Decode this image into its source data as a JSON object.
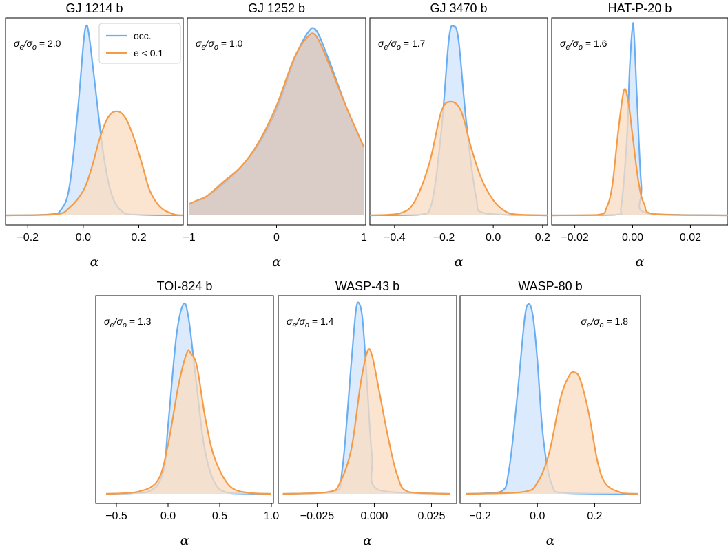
{
  "chart_data": [
    {
      "type": "area",
      "title": "GJ 1214 b",
      "xlabel": "α",
      "annotation": "σe/σo = 2.0",
      "annotation_pos": "top-left",
      "legend": [
        "occ.",
        "e < 0.1"
      ],
      "legend_pos": "top-right",
      "xlim": [
        -0.28,
        0.36
      ],
      "xticks": [
        -0.2,
        0.0,
        0.2
      ],
      "xtick_labels": [
        "−0.2",
        "0.0",
        "0.2"
      ],
      "series": [
        {
          "name": "occ.",
          "color": "#6aaef2",
          "fill": "#cfe3fb",
          "x": [
            -0.28,
            -0.12,
            -0.08,
            -0.05,
            -0.02,
            0.0,
            0.01,
            0.02,
            0.04,
            0.07,
            0.1,
            0.14,
            0.2,
            0.36
          ],
          "y": [
            0,
            0.005,
            0.03,
            0.15,
            0.55,
            0.9,
            1.0,
            0.96,
            0.72,
            0.35,
            0.12,
            0.02,
            0.003,
            0
          ]
        },
        {
          "name": "e < 0.1",
          "color": "#f59b45",
          "fill": "#fbdcc0",
          "x": [
            -0.28,
            -0.1,
            -0.05,
            0.0,
            0.03,
            0.06,
            0.09,
            0.12,
            0.15,
            0.18,
            0.21,
            0.24,
            0.28,
            0.33,
            0.36
          ],
          "y": [
            0,
            0.005,
            0.04,
            0.13,
            0.25,
            0.41,
            0.52,
            0.55,
            0.52,
            0.42,
            0.28,
            0.13,
            0.04,
            0.004,
            0
          ]
        }
      ]
    },
    {
      "type": "area",
      "title": "GJ 1252 b",
      "xlabel": "α",
      "annotation": "σe/σo = 1.0",
      "annotation_pos": "top-left",
      "xlim": [
        -1.02,
        1.02
      ],
      "xticks": [
        -1,
        0,
        1
      ],
      "xtick_labels": [
        "−1",
        "0",
        "1"
      ],
      "series": [
        {
          "name": "occ.",
          "color": "#6aaef2",
          "fill": "#cfe3fb",
          "x": [
            -1.0,
            -0.9,
            -0.8,
            -0.6,
            -0.4,
            -0.2,
            0.0,
            0.2,
            0.35,
            0.45,
            0.6,
            0.8,
            1.0
          ],
          "y": [
            0.06,
            0.08,
            0.1,
            0.17,
            0.26,
            0.38,
            0.56,
            0.82,
            0.96,
            0.98,
            0.82,
            0.57,
            0.36
          ]
        },
        {
          "name": "e < 0.1",
          "color": "#f59b45",
          "fill": "#d9c2b4",
          "x": [
            -1.0,
            -0.9,
            -0.8,
            -0.6,
            -0.4,
            -0.2,
            0.0,
            0.2,
            0.35,
            0.45,
            0.6,
            0.8,
            1.0
          ],
          "y": [
            0.06,
            0.08,
            0.1,
            0.18,
            0.26,
            0.39,
            0.58,
            0.83,
            0.94,
            0.95,
            0.8,
            0.57,
            0.36
          ]
        }
      ]
    },
    {
      "type": "area",
      "title": "GJ 3470 b",
      "xlabel": "α",
      "annotation": "σe/σo = 1.7",
      "annotation_pos": "top-left",
      "xlim": [
        -0.5,
        0.22
      ],
      "xticks": [
        -0.4,
        -0.2,
        0.0,
        0.2
      ],
      "xtick_labels": [
        "−0.4",
        "−0.2",
        "0.0",
        "0.2"
      ],
      "series": [
        {
          "name": "occ.",
          "color": "#6aaef2",
          "fill": "#cfe3fb",
          "x": [
            -0.5,
            -0.3,
            -0.25,
            -0.21,
            -0.18,
            -0.16,
            -0.14,
            -0.11,
            -0.07,
            -0.03,
            0.22
          ],
          "y": [
            0,
            0.003,
            0.06,
            0.45,
            0.93,
            1.0,
            0.92,
            0.5,
            0.1,
            0.01,
            0
          ]
        },
        {
          "name": "e < 0.1",
          "color": "#f59b45",
          "fill": "#fbdcc0",
          "x": [
            -0.5,
            -0.38,
            -0.32,
            -0.26,
            -0.21,
            -0.17,
            -0.13,
            -0.09,
            -0.05,
            0.0,
            0.05,
            0.1,
            0.22
          ],
          "y": [
            0,
            0.01,
            0.07,
            0.27,
            0.55,
            0.6,
            0.55,
            0.36,
            0.2,
            0.08,
            0.02,
            0.004,
            0
          ]
        }
      ]
    },
    {
      "type": "area",
      "title": "HAT-P-20 b",
      "xlabel": "α",
      "annotation": "σe/σo = 1.6",
      "annotation_pos": "top-left",
      "xlim": [
        -0.028,
        0.033
      ],
      "xticks": [
        -0.02,
        0.0,
        0.02
      ],
      "xtick_labels": [
        "−0.02",
        "0.00",
        "0.02"
      ],
      "series": [
        {
          "name": "occ.",
          "color": "#6aaef2",
          "fill": "#cfe3fb",
          "x": [
            -0.028,
            -0.006,
            -0.004,
            -0.002,
            -0.001,
            0.0,
            0.0005,
            0.0015,
            0.003,
            0.005,
            0.033
          ],
          "y": [
            0,
            0.003,
            0.04,
            0.4,
            0.78,
            1.0,
            0.96,
            0.62,
            0.16,
            0.01,
            0
          ]
        },
        {
          "name": "e < 0.1",
          "color": "#f59b45",
          "fill": "#fbdcc0",
          "x": [
            -0.028,
            -0.012,
            -0.009,
            -0.007,
            -0.005,
            -0.003,
            -0.0015,
            0.0,
            0.002,
            0.004,
            0.008,
            0.033
          ],
          "y": [
            0,
            0.003,
            0.04,
            0.16,
            0.44,
            0.66,
            0.6,
            0.42,
            0.18,
            0.06,
            0.005,
            0
          ]
        }
      ]
    },
    {
      "type": "area",
      "title": "TOI-824 b",
      "xlabel": "α",
      "annotation": "σe/σo = 1.3",
      "annotation_pos": "top-left",
      "xlim": [
        -0.7,
        1.02
      ],
      "xticks": [
        -0.5,
        0.0,
        0.5,
        1.0
      ],
      "xtick_labels": [
        "−0.5",
        "0.0",
        "0.5",
        "1.0"
      ],
      "series": [
        {
          "name": "occ.",
          "color": "#6aaef2",
          "fill": "#cfe3fb",
          "x": [
            -0.6,
            -0.2,
            -0.05,
            0.0,
            0.08,
            0.15,
            0.2,
            0.27,
            0.35,
            0.45,
            0.6,
            1.0
          ],
          "y": [
            0,
            0.01,
            0.11,
            0.36,
            0.83,
            1.0,
            0.92,
            0.6,
            0.25,
            0.06,
            0.004,
            0
          ]
        },
        {
          "name": "e < 0.1",
          "color": "#f59b45",
          "fill": "#fbdcc0",
          "x": [
            -0.6,
            -0.3,
            -0.1,
            0.0,
            0.1,
            0.18,
            0.22,
            0.28,
            0.36,
            0.45,
            0.6,
            0.8,
            1.0
          ],
          "y": [
            0,
            0.01,
            0.07,
            0.26,
            0.57,
            0.74,
            0.74,
            0.67,
            0.4,
            0.19,
            0.04,
            0.004,
            0
          ]
        }
      ]
    },
    {
      "type": "area",
      "title": "WASP-43 b",
      "xlabel": "α",
      "annotation": "σe/σo = 1.4",
      "annotation_pos": "top-left",
      "xlim": [
        -0.042,
        0.036
      ],
      "xticks": [
        -0.025,
        0.0,
        0.025
      ],
      "xtick_labels": [
        "−0.025",
        "0.000",
        "0.025"
      ],
      "series": [
        {
          "name": "occ.",
          "color": "#6aaef2",
          "fill": "#cfe3fb",
          "x": [
            -0.04,
            -0.018,
            -0.014,
            -0.01,
            -0.008,
            -0.0065,
            -0.005,
            -0.003,
            -0.001,
            0.002,
            0.033
          ],
          "y": [
            0,
            0.01,
            0.13,
            0.7,
            0.97,
            1.0,
            0.9,
            0.55,
            0.2,
            0.02,
            0
          ]
        },
        {
          "name": "e < 0.1",
          "color": "#f59b45",
          "fill": "#fbdcc0",
          "x": [
            -0.04,
            -0.02,
            -0.015,
            -0.01,
            -0.006,
            -0.003,
            -0.001,
            0.002,
            0.006,
            0.01,
            0.015,
            0.033
          ],
          "y": [
            0,
            0.01,
            0.06,
            0.24,
            0.58,
            0.75,
            0.73,
            0.55,
            0.3,
            0.1,
            0.01,
            0
          ]
        }
      ]
    },
    {
      "type": "area",
      "title": "WASP-80 b",
      "xlabel": "α",
      "annotation": "σe/σo = 1.8",
      "annotation_pos": "top-right",
      "xlim": [
        -0.27,
        0.36
      ],
      "xticks": [
        -0.2,
        0.0,
        0.2
      ],
      "xtick_labels": [
        "−0.2",
        "0.0",
        "0.2"
      ],
      "series": [
        {
          "name": "occ.",
          "color": "#6aaef2",
          "fill": "#cfe3fb",
          "x": [
            -0.25,
            -0.13,
            -0.1,
            -0.07,
            -0.045,
            -0.03,
            -0.015,
            0.0,
            0.02,
            0.05,
            0.1,
            0.35
          ],
          "y": [
            0,
            0.01,
            0.12,
            0.52,
            0.92,
            1.0,
            0.93,
            0.7,
            0.3,
            0.05,
            0.004,
            0
          ]
        },
        {
          "name": "e < 0.1",
          "color": "#f59b45",
          "fill": "#fbdcc0",
          "x": [
            -0.25,
            -0.05,
            0.0,
            0.04,
            0.08,
            0.11,
            0.13,
            0.15,
            0.18,
            0.21,
            0.24,
            0.3,
            0.35
          ],
          "y": [
            0,
            0.01,
            0.06,
            0.21,
            0.5,
            0.62,
            0.64,
            0.6,
            0.42,
            0.17,
            0.05,
            0.003,
            0
          ]
        }
      ]
    }
  ]
}
